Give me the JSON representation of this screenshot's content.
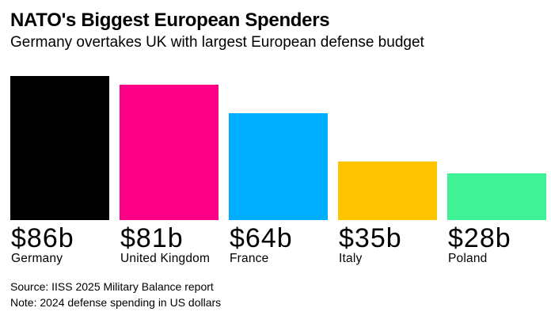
{
  "header": {
    "title": "NATO's Biggest European Spenders",
    "subtitle": "Germany overtakes UK with largest European defense budget"
  },
  "chart_data": {
    "type": "bar",
    "title": "NATO's Biggest European Spenders",
    "subtitle": "Germany overtakes UK with largest European defense budget",
    "categories": [
      "Germany",
      "United Kingdom",
      "France",
      "Italy",
      "Poland"
    ],
    "values": [
      86,
      81,
      64,
      35,
      28
    ],
    "value_labels": [
      "$86b",
      "$81b",
      "$64b",
      "$35b",
      "$28b"
    ],
    "bar_colors": [
      "#000000",
      "#FC0085",
      "#00ADFF",
      "#FFC400",
      "#40F296"
    ],
    "xlabel": "",
    "ylabel": "",
    "ylim": [
      0,
      86
    ],
    "grid": false,
    "legend": "none",
    "axis_lines": "none",
    "value_label_position": "below-bar"
  },
  "footer": {
    "source": "Source: IISS 2025 Military Balance report",
    "note": "Note: 2024 defense spending in US dollars"
  }
}
